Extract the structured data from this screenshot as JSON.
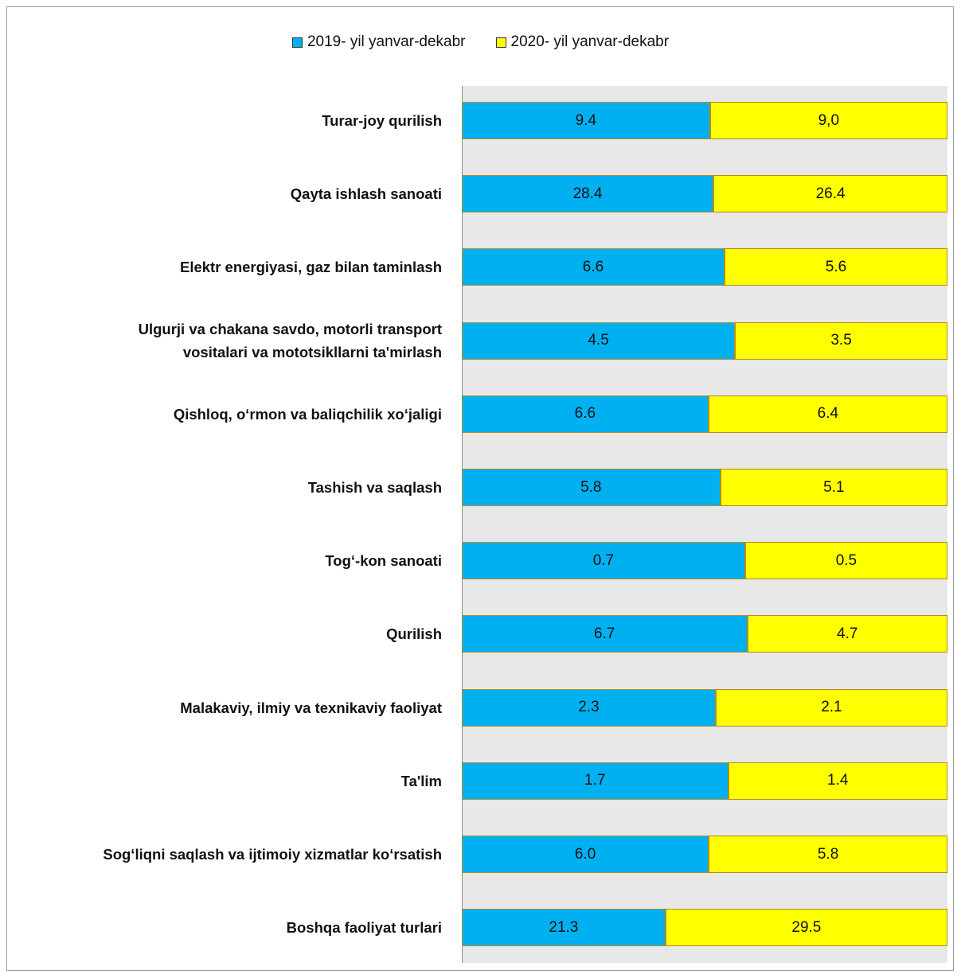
{
  "chart_data": {
    "type": "bar",
    "orientation": "horizontal",
    "stacked_percent": true,
    "legend": "top",
    "categories": [
      "Turar-joy qurilish",
      "Qayta ishlash sanoati",
      "Elektr energiyasi, gaz bilan taminlash",
      "Ulgurji va chakana savdo, motorli transport vositalari va mototsikllarni ta'mirlash",
      "Qishloq, o‘rmon va baliqchilik xo‘jaligi",
      "Tashish va saqlash",
      "Tog‘-kon sanoati",
      "Qurilish",
      "Malakaviy, ilmiy va texnikaviy faoliyat",
      "Ta'lim",
      "Sog‘liqni saqlash va ijtimoiy xizmatlar ko‘rsatish",
      "Boshqa faoliyat turlari"
    ],
    "category_lines": [
      [
        "Turar-joy qurilish"
      ],
      [
        "Qayta ishlash sanoati"
      ],
      [
        "Elektr energiyasi, gaz bilan taminlash"
      ],
      [
        "Ulgurji va chakana savdo, motorli transport",
        "vositalari va mototsikllarni ta'mirlash"
      ],
      [
        "Qishloq, o‘rmon va baliqchilik xo‘jaligi"
      ],
      [
        "Tashish va saqlash"
      ],
      [
        "Tog‘-kon sanoati"
      ],
      [
        "Qurilish"
      ],
      [
        "Malakaviy, ilmiy va texnikaviy faoliyat"
      ],
      [
        "Ta'lim"
      ],
      [
        "Sog‘liqni saqlash va ijtimoiy xizmatlar ko‘rsatish"
      ],
      [
        "Boshqa faoliyat turlari"
      ]
    ],
    "series": [
      {
        "name": "2019- yil yanvar-dekabr",
        "color": "#00b0f0",
        "values": [
          9.4,
          28.4,
          6.6,
          4.5,
          6.6,
          5.8,
          0.7,
          6.7,
          2.3,
          1.7,
          6.0,
          21.3
        ],
        "labels": [
          "9.4",
          "28.4",
          "6.6",
          "4.5",
          "6.6",
          "5.8",
          "0.7",
          "6.7",
          "2.3",
          "1.7",
          "6.0",
          "21.3"
        ]
      },
      {
        "name": "2020- yil yanvar-dekabr",
        "color": "#ffff00",
        "values": [
          9.0,
          26.4,
          5.6,
          3.5,
          6.4,
          5.1,
          0.5,
          4.7,
          2.1,
          1.4,
          5.8,
          29.5
        ],
        "labels": [
          "9,0",
          "26.4",
          "5.6",
          "3.5",
          "6.4",
          "5.1",
          "0.5",
          "4.7",
          "2.1",
          "1.4",
          "5.8",
          "29.5"
        ]
      }
    ]
  }
}
